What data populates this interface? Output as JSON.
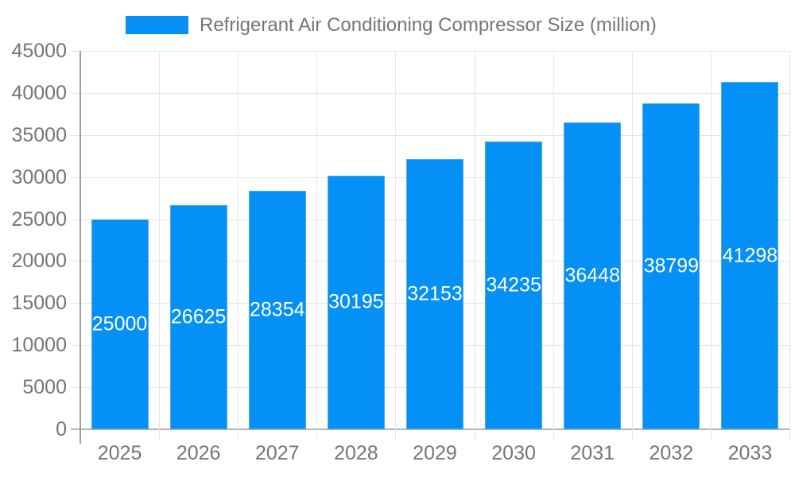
{
  "legend": {
    "label": "Refrigerant Air Conditioning Compressor Size (million)"
  },
  "chart_data": {
    "type": "bar",
    "title": "Refrigerant Air Conditioning Compressor Size (million)",
    "categories": [
      "2025",
      "2026",
      "2027",
      "2028",
      "2029",
      "2030",
      "2031",
      "2032",
      "2033"
    ],
    "values": [
      25000,
      26625,
      28354,
      30195,
      32153,
      34235,
      36448,
      38799,
      41298
    ],
    "bar_labels": [
      "25000",
      "26625",
      "28354",
      "30195",
      "32153",
      "34235",
      "36448",
      "38799",
      "41298"
    ],
    "xlabel": "",
    "ylabel": "",
    "ylim": [
      0,
      45000
    ],
    "ytick_step": 5000,
    "ytick_labels": [
      "0",
      "5000",
      "10000",
      "15000",
      "20000",
      "25000",
      "30000",
      "35000",
      "40000",
      "45000"
    ],
    "grid": true,
    "legend_position": "top",
    "colors": {
      "bar": "#0590F5",
      "bar_border": "#4FA9F2",
      "bar_label_text": "#FFFFFF",
      "grid": "#E6E6E6",
      "axis": "#9E9E9E",
      "baseline": "#B3B3B3",
      "text": "#757575",
      "background": "#FFFFFF"
    }
  }
}
